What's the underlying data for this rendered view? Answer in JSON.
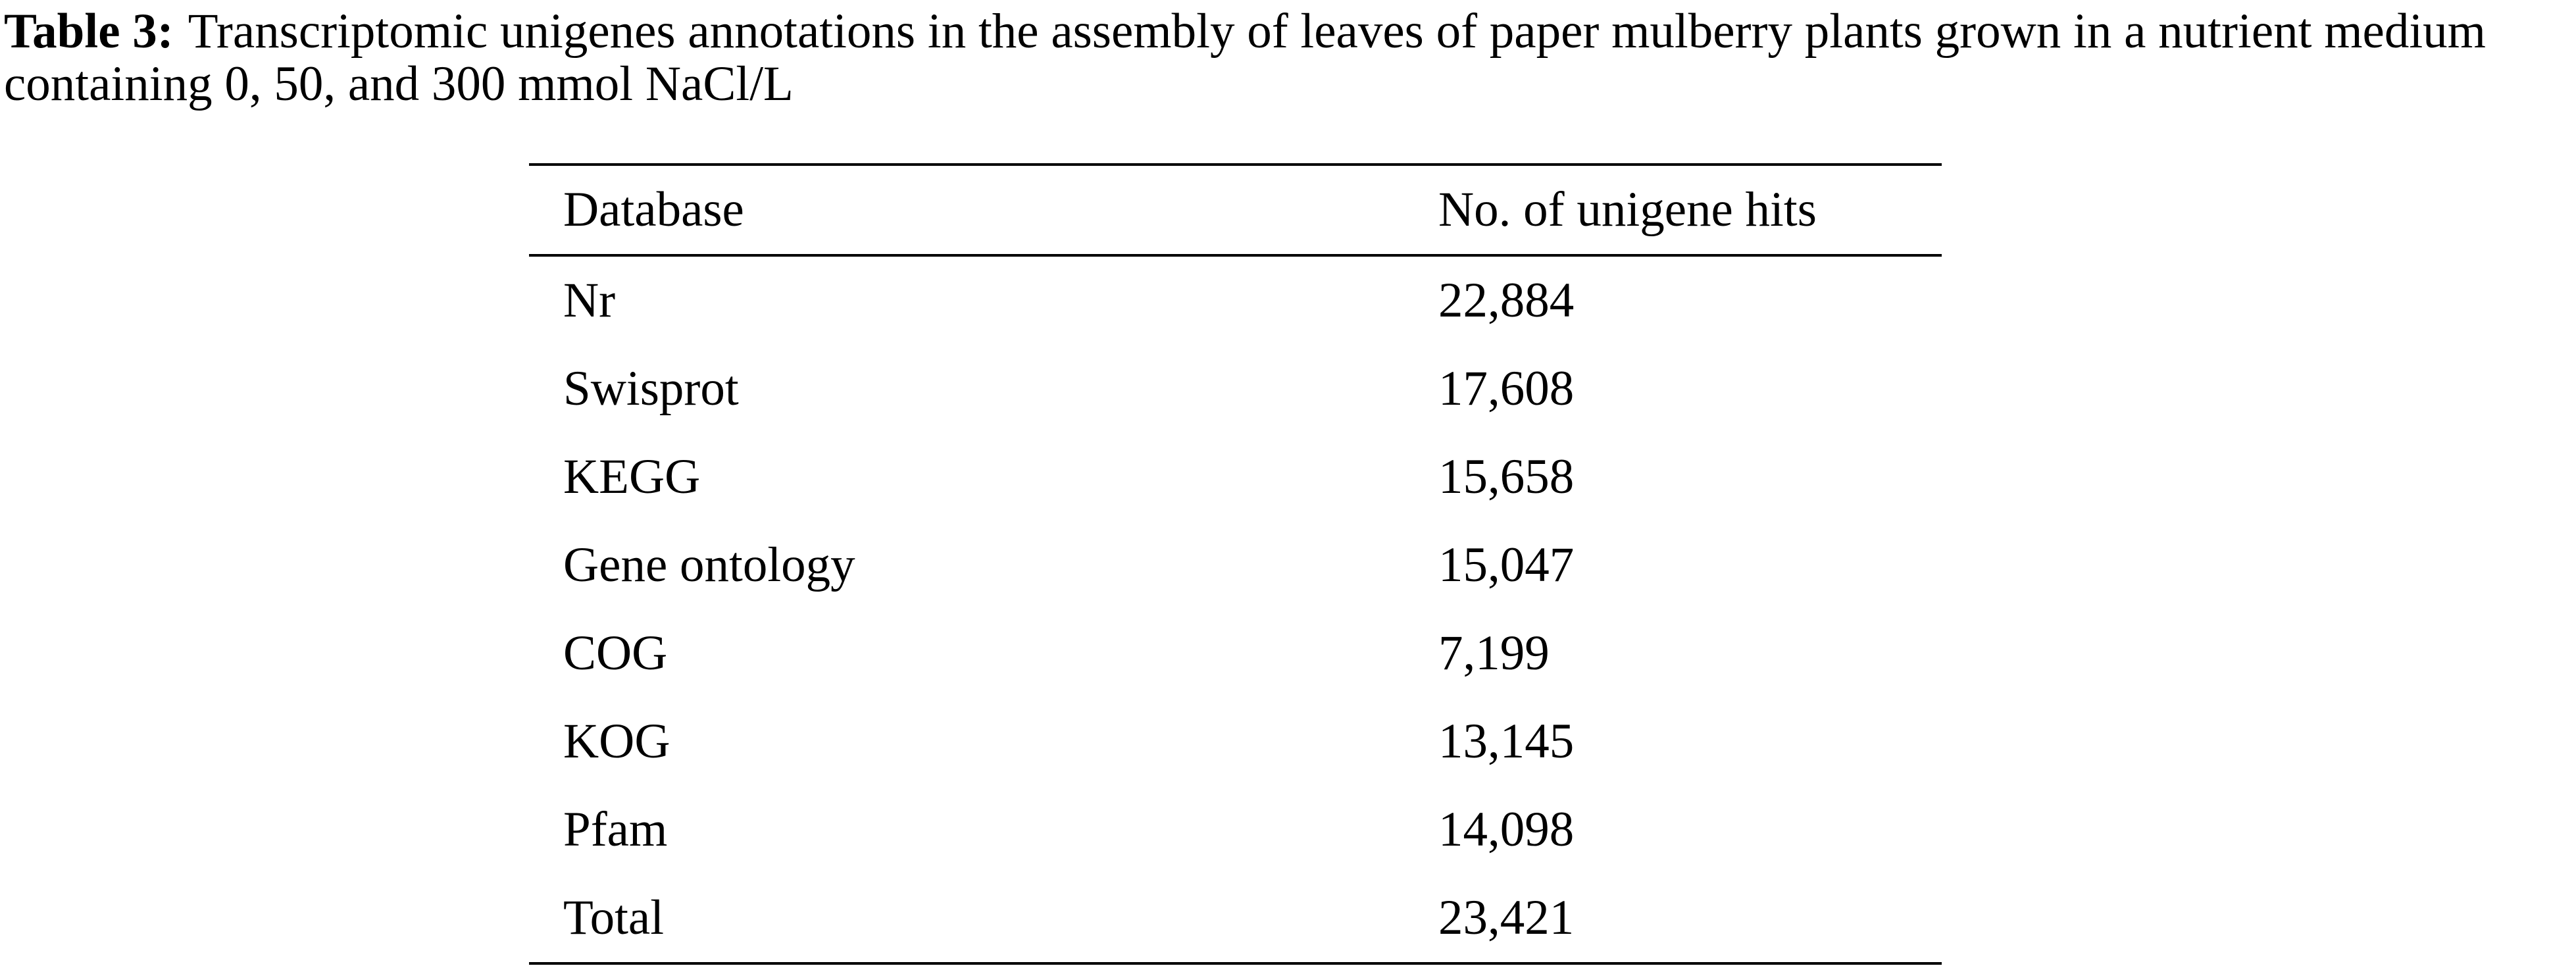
{
  "caption": {
    "label": "Table 3:",
    "text": "Transcriptomic unigenes annotations in the assembly of leaves of paper mulberry plants grown in a nutrient medium containing 0, 50, and 300 mmol NaCl/L"
  },
  "table": {
    "header": [
      "Database",
      "No. of unigene hits"
    ],
    "rows": [
      [
        "Nr",
        "22,884"
      ],
      [
        "Swisprot",
        "17,608"
      ],
      [
        "KEGG",
        "15,658"
      ],
      [
        "Gene ontology",
        "15,047"
      ],
      [
        "COG",
        "7,199"
      ],
      [
        "KOG",
        "13,145"
      ],
      [
        "Pfam",
        "14,098"
      ],
      [
        "Total",
        "23,421"
      ]
    ]
  }
}
